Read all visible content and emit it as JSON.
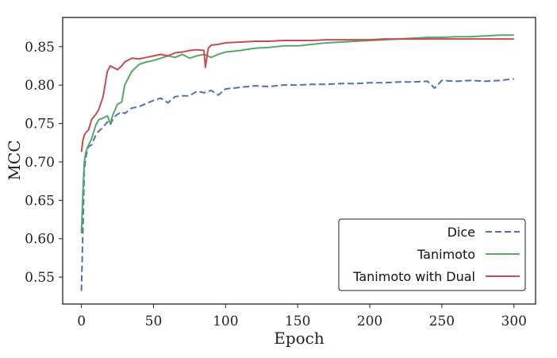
{
  "chart_data": {
    "type": "line",
    "title": "",
    "xlabel": "Epoch",
    "ylabel": "MCC",
    "xlim": [
      -13,
      315
    ],
    "ylim": [
      0.515,
      0.888
    ],
    "xticks": [
      0,
      50,
      100,
      150,
      200,
      250,
      300
    ],
    "yticks": [
      0.55,
      0.6,
      0.65,
      0.7,
      0.75,
      0.8,
      0.85
    ],
    "xtick_labels": [
      "0",
      "50",
      "100",
      "150",
      "200",
      "250",
      "300"
    ],
    "ytick_labels": [
      "0.55",
      "0.60",
      "0.65",
      "0.70",
      "0.75",
      "0.80",
      "0.85"
    ],
    "grid": false,
    "legend_position": "lower-right",
    "series": [
      {
        "name": "Dice",
        "color": "#4c72b0",
        "dash": "dashed",
        "x": [
          0,
          1,
          2,
          3,
          4,
          5,
          7,
          10,
          12,
          15,
          18,
          20,
          22,
          25,
          28,
          30,
          35,
          40,
          45,
          50,
          55,
          60,
          65,
          70,
          75,
          80,
          85,
          90,
          95,
          100,
          110,
          120,
          130,
          140,
          150,
          160,
          170,
          180,
          190,
          200,
          210,
          220,
          230,
          240,
          245,
          250,
          260,
          270,
          280,
          290,
          300
        ],
        "values": [
          0.532,
          0.61,
          0.69,
          0.705,
          0.715,
          0.72,
          0.722,
          0.735,
          0.74,
          0.745,
          0.752,
          0.748,
          0.757,
          0.762,
          0.765,
          0.763,
          0.77,
          0.772,
          0.776,
          0.78,
          0.783,
          0.777,
          0.785,
          0.786,
          0.786,
          0.792,
          0.79,
          0.793,
          0.787,
          0.795,
          0.797,
          0.799,
          0.798,
          0.8,
          0.8,
          0.801,
          0.801,
          0.802,
          0.802,
          0.803,
          0.803,
          0.804,
          0.804,
          0.805,
          0.796,
          0.806,
          0.805,
          0.806,
          0.805,
          0.806,
          0.808
        ]
      },
      {
        "name": "Tanimoto",
        "color": "#55a868",
        "dash": "solid",
        "x": [
          0,
          1,
          2,
          3,
          4,
          5,
          7,
          10,
          12,
          15,
          18,
          20,
          22,
          25,
          28,
          30,
          35,
          40,
          45,
          50,
          55,
          60,
          65,
          70,
          75,
          80,
          85,
          90,
          95,
          100,
          110,
          120,
          130,
          140,
          150,
          160,
          170,
          180,
          190,
          200,
          210,
          220,
          230,
          240,
          250,
          260,
          270,
          280,
          290,
          300
        ],
        "values": [
          0.607,
          0.66,
          0.7,
          0.712,
          0.718,
          0.722,
          0.73,
          0.748,
          0.755,
          0.757,
          0.76,
          0.75,
          0.762,
          0.775,
          0.778,
          0.8,
          0.818,
          0.827,
          0.83,
          0.832,
          0.835,
          0.838,
          0.836,
          0.84,
          0.835,
          0.838,
          0.84,
          0.836,
          0.84,
          0.843,
          0.845,
          0.848,
          0.849,
          0.851,
          0.851,
          0.853,
          0.855,
          0.856,
          0.857,
          0.858,
          0.859,
          0.86,
          0.861,
          0.862,
          0.862,
          0.863,
          0.863,
          0.864,
          0.865,
          0.865
        ]
      },
      {
        "name": "Tanimoto with Dual",
        "color": "#c44e52",
        "dash": "solid",
        "x": [
          0,
          1,
          2,
          3,
          5,
          7,
          10,
          12,
          15,
          18,
          20,
          22,
          25,
          28,
          30,
          35,
          40,
          45,
          50,
          55,
          60,
          65,
          70,
          75,
          80,
          85,
          86,
          88,
          90,
          95,
          100,
          110,
          120,
          130,
          140,
          150,
          160,
          170,
          180,
          190,
          200,
          210,
          220,
          230,
          240,
          250,
          260,
          270,
          280,
          290,
          300
        ],
        "values": [
          0.713,
          0.728,
          0.735,
          0.738,
          0.742,
          0.755,
          0.762,
          0.768,
          0.785,
          0.818,
          0.825,
          0.823,
          0.82,
          0.825,
          0.83,
          0.835,
          0.834,
          0.836,
          0.838,
          0.84,
          0.838,
          0.842,
          0.843,
          0.845,
          0.846,
          0.845,
          0.823,
          0.848,
          0.852,
          0.853,
          0.855,
          0.856,
          0.857,
          0.857,
          0.858,
          0.858,
          0.858,
          0.859,
          0.859,
          0.859,
          0.859,
          0.86,
          0.86,
          0.86,
          0.86,
          0.86,
          0.86,
          0.86,
          0.86,
          0.86,
          0.86
        ]
      }
    ]
  }
}
